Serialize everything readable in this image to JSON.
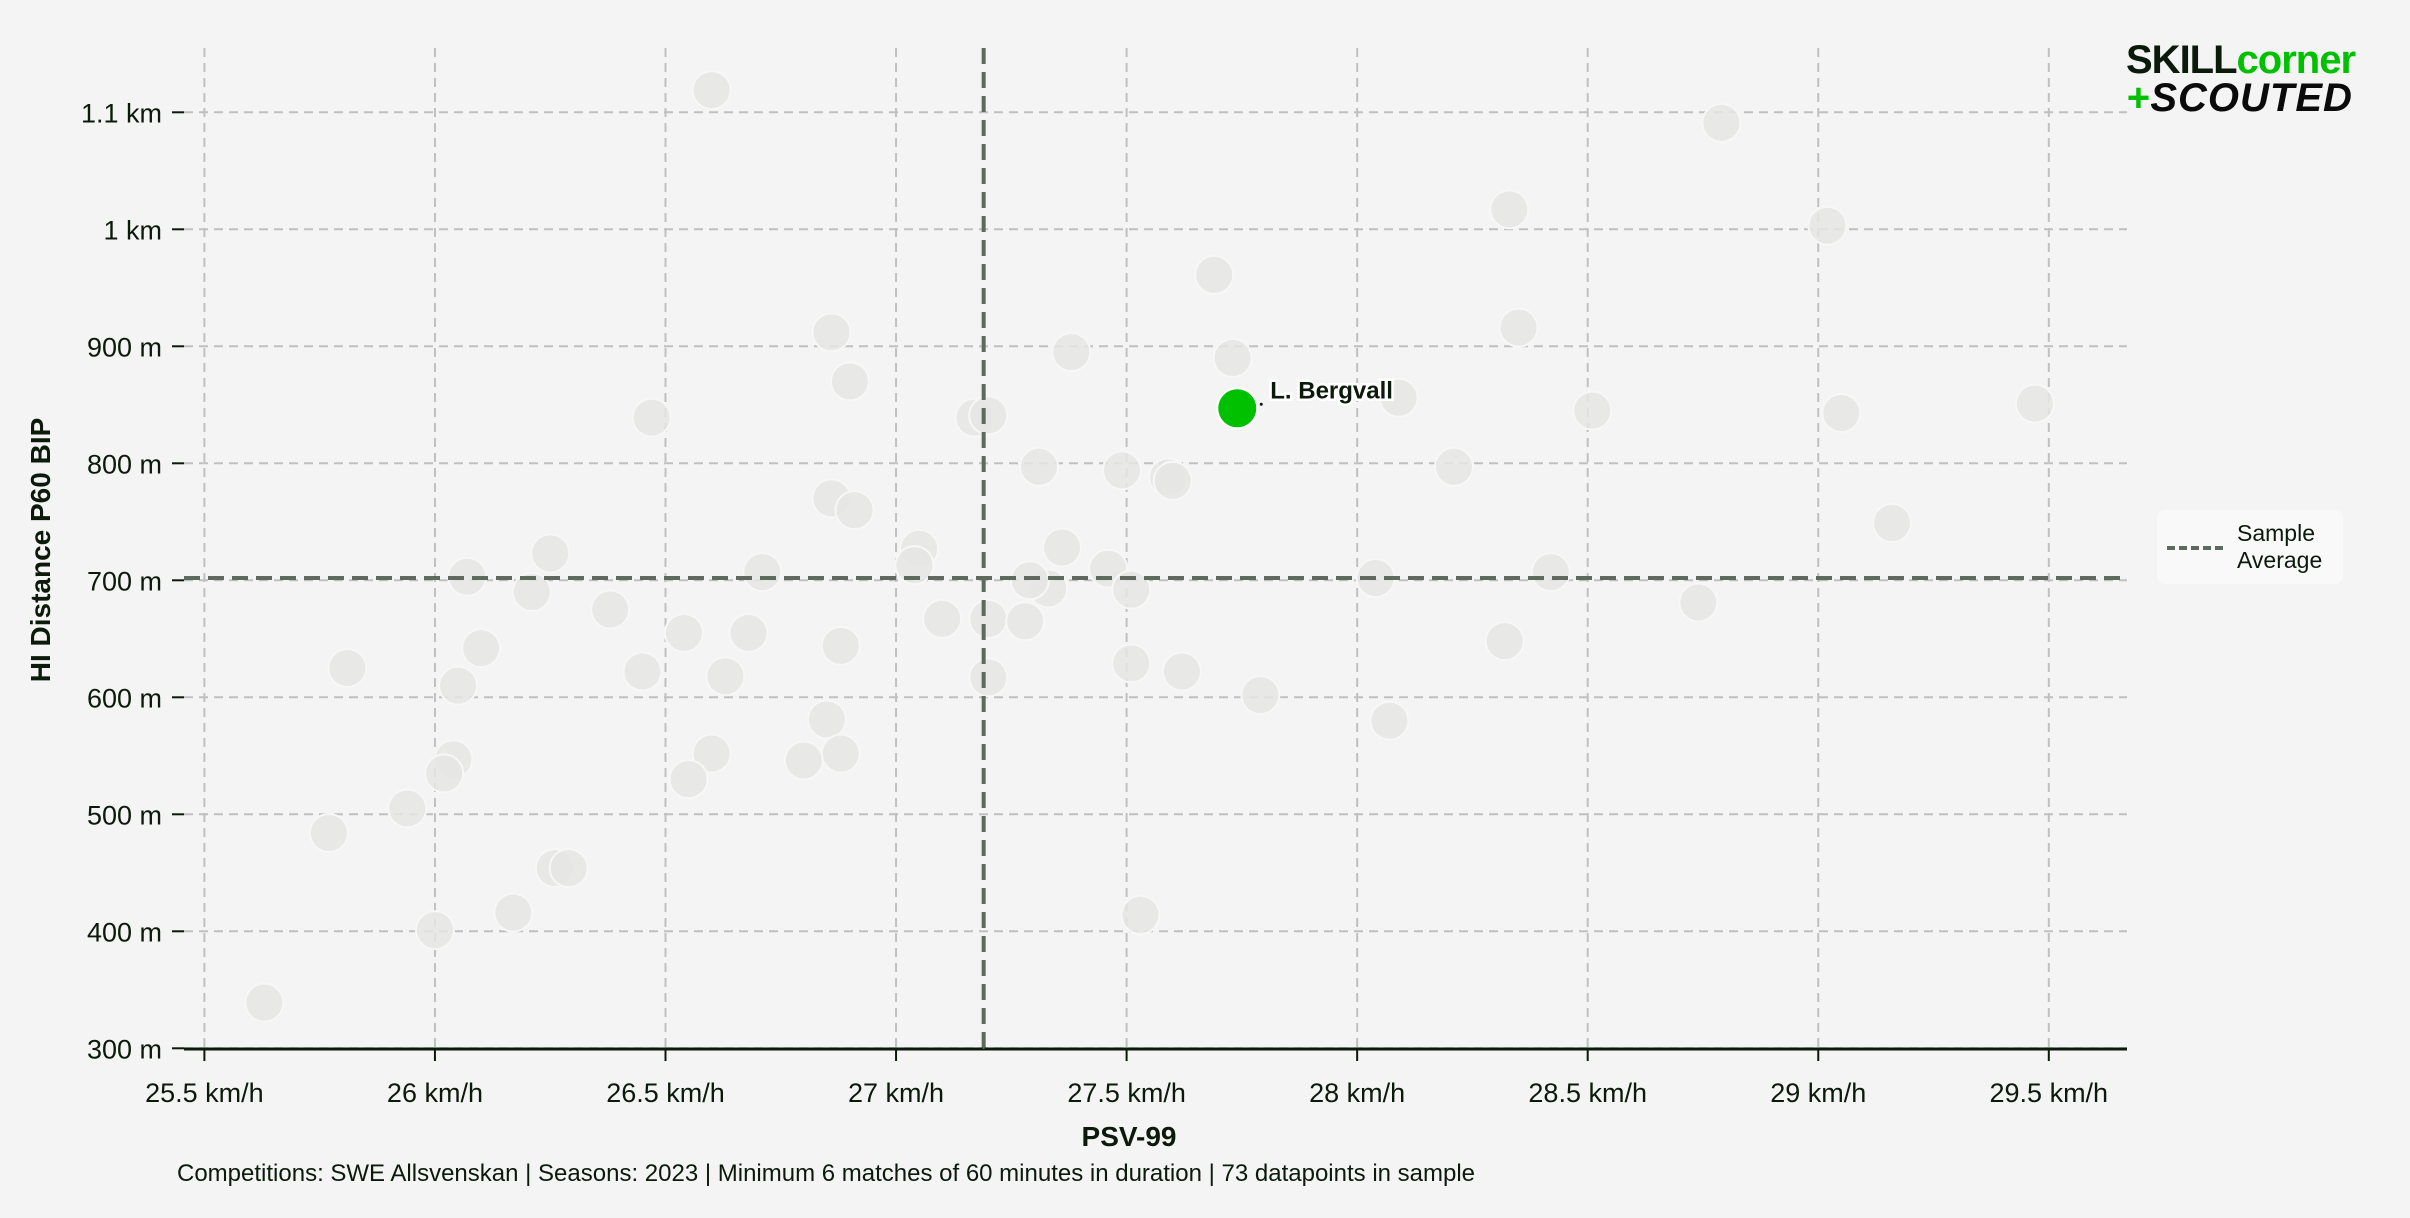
{
  "logo": {
    "part1": "SKILL",
    "part2": "corner",
    "plus": "+",
    "part3": "SCOUTED"
  },
  "legend": {
    "label_line1": "Sample",
    "label_line2": "Average"
  },
  "footer": "Competitions: SWE Allsvenskan | Seasons: 2023 | Minimum 6 matches of 60 minutes in duration | 73 datapoints in sample",
  "colors": {
    "background": "#f4f4f4",
    "highlight": "#00c000",
    "point": "#e5e5e3",
    "average_line": "#5d6a5d",
    "grid": "#c0c0c0",
    "text": "#0b1a0b"
  },
  "chart_data": {
    "type": "scatter",
    "title": "",
    "xlabel": "PSV-99",
    "ylabel": "HI Distance P60 BIP",
    "xlim": [
      25.45,
      29.67
    ],
    "ylim": [
      300,
      1150
    ],
    "x_ticks": [
      25.5,
      26,
      26.5,
      27,
      27.5,
      28,
      28.5,
      29,
      29.5
    ],
    "x_tick_labels": [
      "25.5 km/h",
      "26 km/h",
      "26.5 km/h",
      "27 km/h",
      "27.5 km/h",
      "28 km/h",
      "28.5 km/h",
      "29 km/h",
      "29.5 km/h"
    ],
    "y_ticks": [
      300,
      400,
      500,
      600,
      700,
      800,
      900,
      1000,
      1100
    ],
    "y_tick_labels": [
      "300 m",
      "400 m",
      "500 m",
      "600 m",
      "700 m",
      "800 m",
      "900 m",
      "1 km",
      "1.1 km"
    ],
    "grid": true,
    "legend_position": "right",
    "averages": {
      "x": 27.19,
      "y": 702,
      "label": "Sample Average"
    },
    "highlight": {
      "name": "L. Bergvall",
      "x": 27.74,
      "y": 847
    },
    "points": [
      [
        26.6,
        1119
      ],
      [
        28.79,
        1091
      ],
      [
        28.33,
        1017
      ],
      [
        29.02,
        1003
      ],
      [
        27.69,
        961
      ],
      [
        28.35,
        916
      ],
      [
        26.86,
        912
      ],
      [
        27.38,
        895
      ],
      [
        27.73,
        890
      ],
      [
        26.9,
        870
      ],
      [
        28.09,
        856
      ],
      [
        26.47,
        839
      ],
      [
        27.17,
        839
      ],
      [
        27.2,
        841
      ],
      [
        28.51,
        845
      ],
      [
        29.05,
        843
      ],
      [
        29.47,
        851
      ],
      [
        27.31,
        797
      ],
      [
        27.49,
        794
      ],
      [
        28.21,
        797
      ],
      [
        27.59,
        788
      ],
      [
        27.6,
        785
      ],
      [
        26.86,
        770
      ],
      [
        26.91,
        760
      ],
      [
        29.16,
        749
      ],
      [
        27.05,
        727
      ],
      [
        27.36,
        728
      ],
      [
        26.25,
        723
      ],
      [
        27.04,
        713
      ],
      [
        27.46,
        710
      ],
      [
        26.07,
        703
      ],
      [
        26.71,
        707
      ],
      [
        28.42,
        707
      ],
      [
        28.04,
        702
      ],
      [
        27.33,
        693
      ],
      [
        27.51,
        692
      ],
      [
        26.21,
        690
      ],
      [
        28.74,
        681
      ],
      [
        26.38,
        675
      ],
      [
        27.1,
        667
      ],
      [
        27.2,
        667
      ],
      [
        27.28,
        665
      ],
      [
        26.54,
        655
      ],
      [
        26.68,
        655
      ],
      [
        28.32,
        648
      ],
      [
        26.1,
        642
      ],
      [
        26.88,
        644
      ],
      [
        25.81,
        625
      ],
      [
        27.51,
        629
      ],
      [
        26.45,
        622
      ],
      [
        26.63,
        618
      ],
      [
        27.62,
        622
      ],
      [
        27.2,
        617
      ],
      [
        26.05,
        610
      ],
      [
        27.79,
        602
      ],
      [
        28.07,
        580
      ],
      [
        26.85,
        581
      ],
      [
        26.88,
        552
      ],
      [
        26.6,
        552
      ],
      [
        26.04,
        547
      ],
      [
        26.8,
        546
      ],
      [
        26.02,
        535
      ],
      [
        26.55,
        530
      ],
      [
        25.94,
        505
      ],
      [
        25.77,
        484
      ],
      [
        26.26,
        454
      ],
      [
        26.29,
        454
      ],
      [
        26.17,
        416
      ],
      [
        27.53,
        414
      ],
      [
        26.0,
        401
      ],
      [
        25.63,
        339
      ],
      [
        27.29,
        700
      ]
    ]
  }
}
